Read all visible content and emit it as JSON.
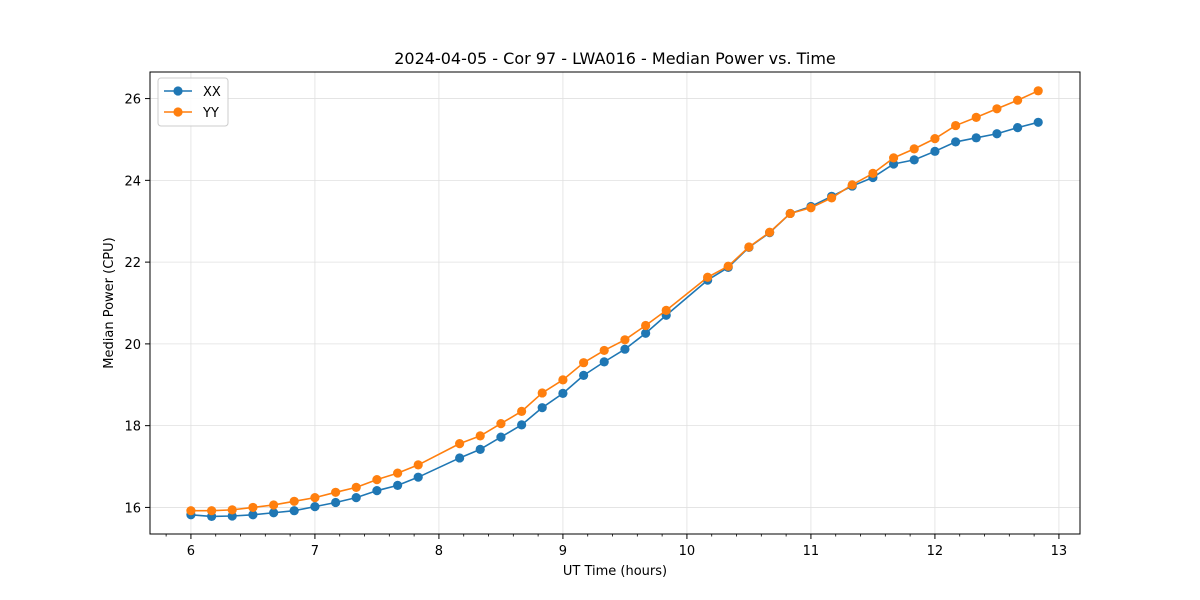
{
  "chart_data": {
    "type": "line",
    "title": "2024-04-05 - Cor 97 - LWA016 - Median Power vs. Time",
    "xlabel": "UT Time (hours)",
    "ylabel": "Median Power (CPU)",
    "xlim": [
      5.67,
      13.17
    ],
    "ylim": [
      15.35,
      26.65
    ],
    "xticks": [
      6,
      7,
      8,
      9,
      10,
      11,
      12,
      13
    ],
    "yticks": [
      16,
      18,
      20,
      22,
      24,
      26
    ],
    "x_minor_step": 0.2,
    "grid": true,
    "legend_position": "top-left",
    "series": [
      {
        "name": "XX",
        "color": "#1f77b4",
        "x": [
          6.0,
          6.167,
          6.333,
          6.5,
          6.667,
          6.833,
          7.0,
          7.167,
          7.333,
          7.5,
          7.667,
          7.833,
          8.167,
          8.333,
          8.5,
          8.667,
          8.833,
          9.0,
          9.167,
          9.333,
          9.5,
          9.667,
          9.833,
          10.167,
          10.333,
          10.5,
          10.667,
          10.833,
          11.0,
          11.167,
          11.333,
          11.5,
          11.667,
          11.833,
          12.0,
          12.167,
          12.333,
          12.5,
          12.667,
          12.833
        ],
        "y": [
          15.82,
          15.78,
          15.79,
          15.82,
          15.87,
          15.92,
          16.02,
          16.12,
          16.24,
          16.41,
          16.54,
          16.74,
          17.21,
          17.42,
          17.72,
          18.02,
          18.44,
          18.79,
          19.23,
          19.56,
          19.87,
          20.26,
          20.7,
          21.56,
          21.87,
          22.36,
          22.72,
          23.19,
          23.36,
          23.61,
          23.86,
          24.07,
          24.4,
          24.5,
          24.71,
          24.94,
          25.04,
          25.14,
          25.29,
          25.42
        ]
      },
      {
        "name": "YY",
        "color": "#ff7f0e",
        "x": [
          6.0,
          6.167,
          6.333,
          6.5,
          6.667,
          6.833,
          7.0,
          7.167,
          7.333,
          7.5,
          7.667,
          7.833,
          8.167,
          8.333,
          8.5,
          8.667,
          8.833,
          9.0,
          9.167,
          9.333,
          9.5,
          9.667,
          9.833,
          10.167,
          10.333,
          10.5,
          10.667,
          10.833,
          11.0,
          11.167,
          11.333,
          11.5,
          11.667,
          11.833,
          12.0,
          12.167,
          12.333,
          12.5,
          12.667,
          12.833
        ],
        "y": [
          15.92,
          15.92,
          15.94,
          16.0,
          16.06,
          16.15,
          16.24,
          16.37,
          16.49,
          16.68,
          16.84,
          17.04,
          17.56,
          17.75,
          18.05,
          18.35,
          18.8,
          19.12,
          19.54,
          19.84,
          20.1,
          20.45,
          20.82,
          21.63,
          21.9,
          22.37,
          22.73,
          23.19,
          23.33,
          23.57,
          23.89,
          24.17,
          24.55,
          24.77,
          25.02,
          25.34,
          25.54,
          25.75,
          25.96,
          26.19
        ]
      }
    ]
  }
}
